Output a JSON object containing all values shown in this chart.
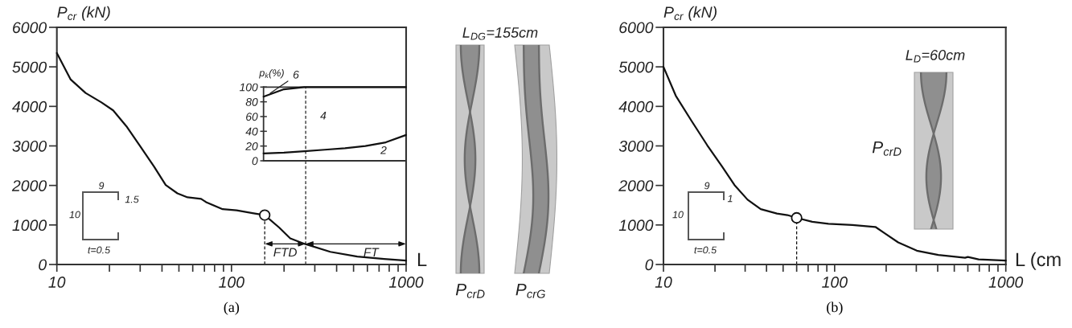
{
  "chart_data": [
    {
      "type": "line",
      "title": "(a)",
      "xlabel": "L",
      "ylabel": "P$_{cr}$ (kN)",
      "log": "x",
      "xlim": [
        10,
        1000
      ],
      "xticks": [
        10,
        100,
        1000
      ],
      "ylim": [
        0,
        6000
      ],
      "yticks": [
        0,
        1000,
        2000,
        3000,
        4000,
        5000,
        6000
      ],
      "series": [
        {
          "color": "#111111",
          "x": [
            10,
            12,
            14.6,
            18,
            21,
            25,
            30,
            36,
            42,
            49,
            56,
            67,
            72,
            89,
            107,
            132,
            155,
            188,
            217,
            263,
            368,
            525,
            748,
            1000
          ],
          "values": [
            5350,
            4680,
            4340,
            4100,
            3900,
            3500,
            2990,
            2480,
            2010,
            1800,
            1700,
            1660,
            1570,
            1400,
            1370,
            1300,
            1250,
            930,
            660,
            520,
            320,
            200,
            140,
            100
          ]
        },
        {
          "type": "lollipop",
          "color": "#111111",
          "line_style": "dashed",
          "marker": "circle",
          "x": [
            155
          ],
          "values": [
            1250
          ]
        }
      ],
      "ref_lines": [
        {
          "axis": "x",
          "value": 266,
          "line_style": "dashed"
        }
      ],
      "annotations": [
        "9",
        "1.5",
        "10",
        "t=0.5",
        "FTD",
        "FT",
        "L$_{DG}$=155cm",
        "P$_{crD}$",
        "P$_{crG}$"
      ]
    },
    {
      "type": "line",
      "ylabel": "p$_{k}$(%)",
      "categories": [
        null,
        null,
        null,
        null,
        null,
        null,
        null,
        null
      ],
      "ylim": [
        0,
        100
      ],
      "yticks": [
        0,
        20,
        40,
        60,
        80,
        100
      ],
      "tick_labels": "y",
      "series": [
        {
          "color": "#111111",
          "values": [
            87,
            97,
            100,
            100,
            100,
            100,
            100,
            100
          ]
        },
        {
          "color": "#111111",
          "values": [
            10,
            11,
            13,
            15,
            17,
            20,
            25,
            35
          ]
        }
      ],
      "annotations": [
        "6",
        "4",
        "2"
      ]
    },
    {
      "type": "line",
      "title": "(b)",
      "xlabel": "L (cm",
      "ylabel": "P$_{cr}$ (kN)",
      "log": "x",
      "xlim": [
        10,
        1000
      ],
      "xticks": [
        10,
        100,
        1000
      ],
      "ylim": [
        0,
        6000
      ],
      "yticks": [
        0,
        1000,
        2000,
        3000,
        4000,
        5000,
        6000
      ],
      "series": [
        {
          "color": "#111111",
          "x": [
            10,
            11.8,
            14.6,
            18,
            22,
            26,
            31,
            37,
            46,
            53,
            60,
            74,
            92,
            127,
            173,
            196,
            235,
            302,
            403,
            578,
            600,
            693,
            1000
          ],
          "values": [
            5000,
            4270,
            3630,
            3020,
            2480,
            2010,
            1640,
            1400,
            1290,
            1250,
            1180,
            1080,
            1030,
            1000,
            950,
            790,
            560,
            350,
            240,
            170,
            190,
            130,
            100
          ]
        },
        {
          "type": "lollipop",
          "color": "#111111",
          "line_style": "dashed",
          "marker": "circle",
          "x": [
            60
          ],
          "values": [
            1180
          ]
        }
      ],
      "annotations": [
        "9",
        "1",
        "10",
        "t=0.5",
        "L$_{D}$=60cm",
        "P$_{crD}$"
      ]
    }
  ]
}
